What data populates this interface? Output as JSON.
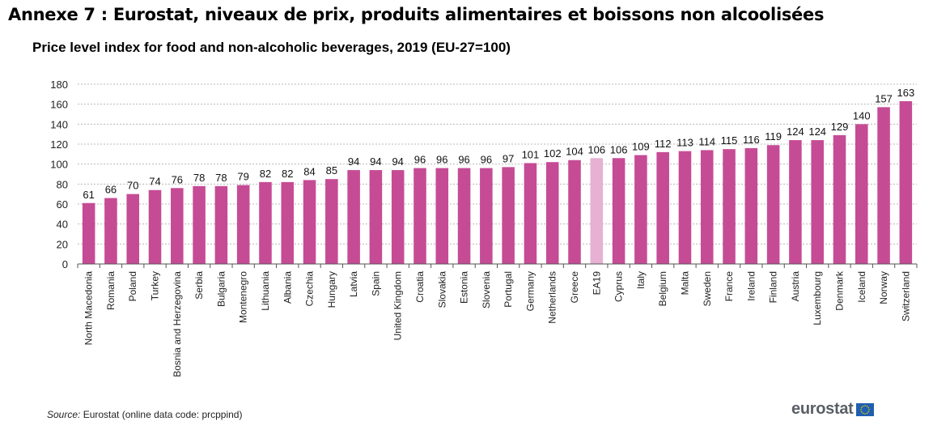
{
  "header": {
    "annex_title": "Annexe 7 : Eurostat, niveaux de prix, produits alimentaires et boissons non alcoolisées"
  },
  "footer": {
    "source_prefix": "Source:",
    "source_text": " Eurostat (online data code: prcppind)",
    "logo_text": "eurostat"
  },
  "colors": {
    "bar": "#c64b95",
    "highlight_bar": "#e6b1d2",
    "gridline": "#b8b8b8",
    "axis": "#555555"
  },
  "chart_data": {
    "type": "bar",
    "title": "Price level index for food and non-alcoholic beverages, 2019 (EU-27=100)",
    "xlabel": "",
    "ylabel": "",
    "ylim": [
      0,
      180
    ],
    "yticks": [
      0,
      20,
      40,
      60,
      80,
      100,
      120,
      140,
      160,
      180
    ],
    "grid": true,
    "legend": "none",
    "highlight_category": "EA19",
    "categories": [
      "North Macedonia",
      "Romania",
      "Poland",
      "Turkey",
      "Bosnia and Herzegovina",
      "Serbia",
      "Bulgaria",
      "Montenegro",
      "Lithuania",
      "Albania",
      "Czechia",
      "Hungary",
      "Latvia",
      "Spain",
      "United Kingdom",
      "Croatia",
      "Slovakia",
      "Estonia",
      "Slovenia",
      "Portugal",
      "Germany",
      "Netherlands",
      "Greece",
      "EA19",
      "Cyprus",
      "Italy",
      "Belgium",
      "Malta",
      "Sweden",
      "France",
      "Ireland",
      "Finland",
      "Austria",
      "Luxembourg",
      "Denmark",
      "Iceland",
      "Norway",
      "Switzerland"
    ],
    "values": [
      61,
      66,
      70,
      74,
      76,
      78,
      78,
      79,
      82,
      82,
      84,
      85,
      94,
      94,
      94,
      96,
      96,
      96,
      96,
      97,
      101,
      102,
      104,
      106,
      106,
      109,
      112,
      113,
      114,
      115,
      116,
      119,
      124,
      124,
      129,
      140,
      157,
      163
    ]
  }
}
